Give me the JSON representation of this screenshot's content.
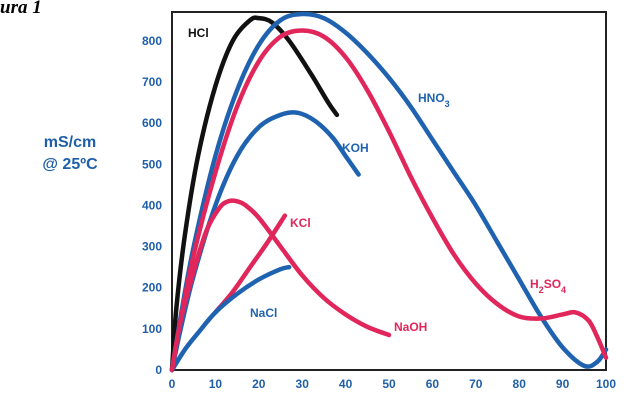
{
  "figure": {
    "caption": "ura 1"
  },
  "chart_data": {
    "type": "line",
    "title": "",
    "xlabel": "",
    "ylabel": [
      "mS/cm",
      "@ 25ºC"
    ],
    "xlim": [
      0,
      100
    ],
    "ylim": [
      0,
      870
    ],
    "xticks": [
      0,
      10,
      20,
      30,
      40,
      50,
      60,
      70,
      80,
      90,
      100
    ],
    "yticks": [
      0,
      100,
      200,
      300,
      400,
      500,
      600,
      700,
      800
    ],
    "grid": false,
    "colors": {
      "black": "#111111",
      "blue": "#1f63b0",
      "red": "#e0265a",
      "axis_text": "#1f5fa8"
    },
    "series": [
      {
        "name": "HCl",
        "label_text": "HCl",
        "label_sub": "",
        "label_color": "#111111",
        "color": "#111111",
        "x": [
          0,
          1,
          3,
          6,
          10,
          14,
          18,
          20,
          23,
          27,
          32,
          36,
          38
        ],
        "y": [
          0,
          150,
          330,
          520,
          690,
          800,
          850,
          855,
          845,
          800,
          720,
          650,
          620
        ]
      },
      {
        "name": "HNO3",
        "label_text": "HNO",
        "label_sub": "3",
        "label_color": "#1f63b0",
        "color": "#1f63b0",
        "x": [
          0,
          2,
          5,
          10,
          15,
          20,
          25,
          30,
          35,
          40,
          45,
          50,
          55,
          60,
          65,
          70,
          75,
          80,
          85,
          90,
          95,
          98,
          100
        ],
        "y": [
          0,
          130,
          300,
          520,
          680,
          790,
          850,
          865,
          855,
          820,
          770,
          710,
          640,
          560,
          480,
          400,
          310,
          220,
          130,
          55,
          10,
          20,
          50
        ]
      },
      {
        "name": "H2SO4",
        "label_text": "H",
        "label_sub": "2",
        "label_text2": "SO",
        "label_sub2": "4",
        "label_color": "#e0265a",
        "color": "#e0265a",
        "x": [
          0,
          2,
          5,
          10,
          15,
          20,
          25,
          30,
          35,
          40,
          45,
          50,
          55,
          60,
          65,
          70,
          75,
          80,
          85,
          90,
          93,
          96,
          98,
          100
        ],
        "y": [
          0,
          120,
          280,
          480,
          640,
          750,
          810,
          825,
          810,
          760,
          680,
          580,
          470,
          370,
          280,
          210,
          160,
          130,
          125,
          135,
          140,
          120,
          80,
          30
        ]
      },
      {
        "name": "KOH",
        "label_text": "KOH",
        "label_sub": "",
        "label_color": "#1f63b0",
        "color": "#1f63b0",
        "x": [
          0,
          2,
          5,
          10,
          15,
          20,
          25,
          29,
          33,
          37,
          40,
          43
        ],
        "y": [
          0,
          100,
          230,
          400,
          520,
          590,
          620,
          625,
          605,
          565,
          520,
          475
        ]
      },
      {
        "name": "KCl",
        "label_text": "KCl",
        "label_sub": "",
        "label_color": "#e0265a",
        "color": "#e0265a",
        "x": [
          10,
          14,
          18,
          22,
          26
        ],
        "y": [
          140,
          190,
          250,
          310,
          375
        ]
      },
      {
        "name": "NaCl",
        "label_text": "NaCl",
        "label_sub": "",
        "label_color": "#1f63b0",
        "color": "#1f63b0",
        "x": [
          0,
          3,
          6,
          10,
          15,
          20,
          25,
          27
        ],
        "y": [
          0,
          50,
          90,
          140,
          185,
          220,
          245,
          250
        ]
      },
      {
        "name": "NaOH",
        "label_text": "NaOH",
        "label_sub": "",
        "label_color": "#e0265a",
        "color": "#e0265a",
        "x": [
          0,
          2,
          5,
          8,
          11,
          13,
          15,
          17,
          20,
          25,
          30,
          35,
          40,
          45,
          50
        ],
        "y": [
          0,
          120,
          240,
          340,
          395,
          410,
          410,
          400,
          370,
          300,
          230,
          175,
          135,
          105,
          85
        ]
      }
    ]
  }
}
